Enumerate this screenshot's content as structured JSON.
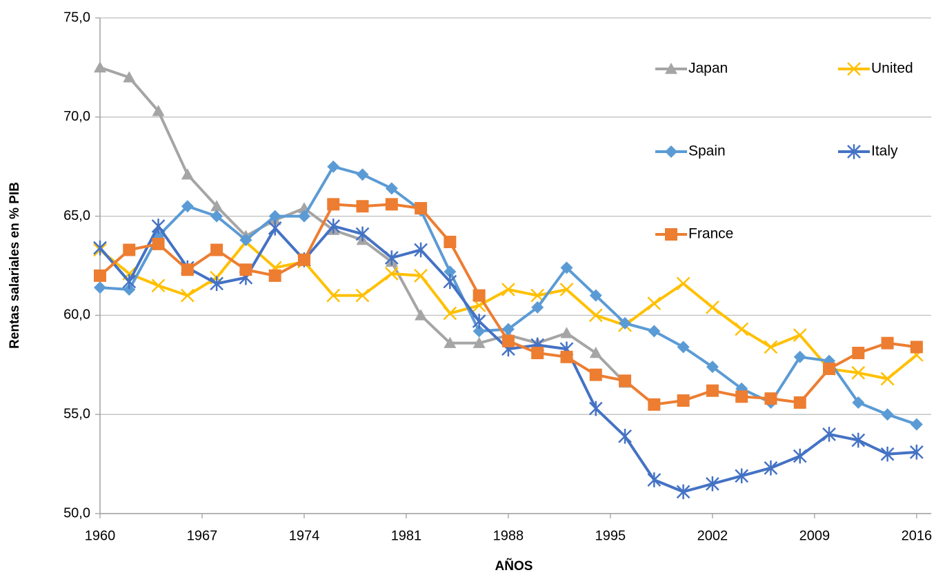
{
  "chart_data": {
    "type": "line",
    "x_label": "AÑOS",
    "y_label": "Rentas salariales en % PIB",
    "x": [
      1960,
      1962,
      1964,
      1966,
      1968,
      1970,
      1972,
      1974,
      1976,
      1978,
      1980,
      1982,
      1984,
      1986,
      1988,
      1990,
      1992,
      1994,
      1996,
      1998,
      2000,
      2002,
      2004,
      2006,
      2008,
      2010,
      2012,
      2014,
      2016
    ],
    "xlim": [
      1960,
      2017
    ],
    "xticks": [
      1960,
      1967,
      1974,
      1981,
      1988,
      1995,
      2002,
      2009,
      2016
    ],
    "ylim": [
      50,
      75
    ],
    "yticks": [
      {
        "value": 50,
        "label": "50,0"
      },
      {
        "value": 55,
        "label": "55,0"
      },
      {
        "value": 60,
        "label": "60,0"
      },
      {
        "value": 65,
        "label": "65,0"
      },
      {
        "value": 70,
        "label": "70,0"
      },
      {
        "value": 75,
        "label": "75,0"
      }
    ],
    "grid": true,
    "legend": "top-right",
    "series": [
      {
        "name": "Japan",
        "color": "#a5a5a5",
        "marker": "triangle",
        "values": [
          72.5,
          72.0,
          70.3,
          67.1,
          65.5,
          64.0,
          64.8,
          65.4,
          64.3,
          63.8,
          62.7,
          60.0,
          58.6,
          58.6,
          59.0,
          58.6,
          59.1,
          58.1,
          56.6,
          null,
          null,
          null,
          null,
          null,
          null,
          null,
          null,
          null,
          null
        ]
      },
      {
        "name": "United",
        "color": "#ffc000",
        "marker": "x",
        "values": [
          63.3,
          62.1,
          61.5,
          61.0,
          61.9,
          63.7,
          62.4,
          62.7,
          61.0,
          61.0,
          62.1,
          62.0,
          60.1,
          60.5,
          61.3,
          61.0,
          61.3,
          60.0,
          59.5,
          60.6,
          61.6,
          60.4,
          59.3,
          58.4,
          59.0,
          57.3,
          57.1,
          56.8,
          58.0
        ]
      },
      {
        "name": "Spain",
        "color": "#5b9bd5",
        "marker": "diamond",
        "values": [
          61.4,
          61.3,
          64.0,
          65.5,
          65.0,
          63.8,
          65.0,
          65.0,
          67.5,
          67.1,
          66.4,
          65.3,
          62.2,
          59.2,
          59.3,
          60.4,
          62.4,
          61.0,
          59.6,
          59.2,
          58.4,
          57.4,
          56.3,
          55.6,
          57.9,
          57.7,
          55.6,
          55.0,
          54.5
        ]
      },
      {
        "name": "Italy",
        "color": "#4472c4",
        "marker": "asterisk",
        "values": [
          63.4,
          61.7,
          64.5,
          62.4,
          61.6,
          61.9,
          64.4,
          62.8,
          64.5,
          64.1,
          62.9,
          63.3,
          61.7,
          59.7,
          58.3,
          58.5,
          58.3,
          55.3,
          53.9,
          51.7,
          51.1,
          51.5,
          51.9,
          52.3,
          52.9,
          54.0,
          53.7,
          53.0,
          53.1
        ]
      },
      {
        "name": "France",
        "color": "#ed7d31",
        "marker": "square",
        "values": [
          62.0,
          63.3,
          63.6,
          62.3,
          63.3,
          62.3,
          62.0,
          62.8,
          65.6,
          65.5,
          65.6,
          65.4,
          63.7,
          61.0,
          58.7,
          58.1,
          57.9,
          57.0,
          56.7,
          55.5,
          55.7,
          56.2,
          55.9,
          55.8,
          55.6,
          57.3,
          58.1,
          58.6,
          58.4
        ]
      }
    ]
  }
}
